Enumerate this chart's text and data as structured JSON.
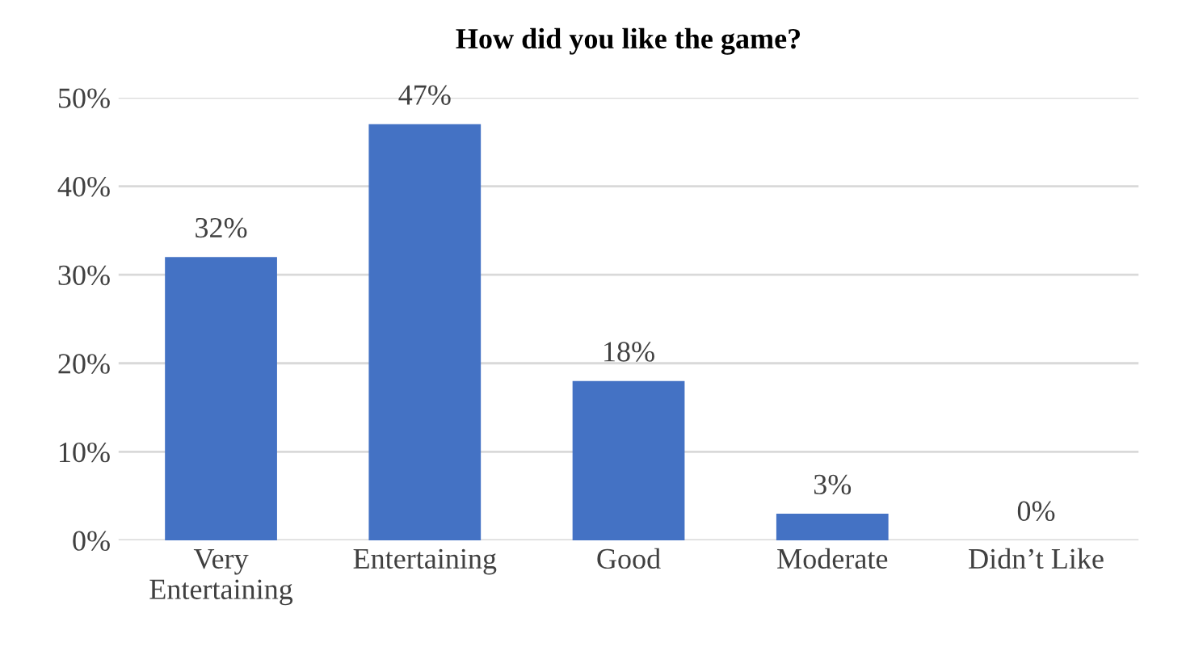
{
  "chart_data": {
    "type": "bar",
    "title": "How did you like the game?",
    "categories": [
      "Very\nEntertaining",
      "Entertaining",
      "Good",
      "Moderate",
      "Didn’t Like"
    ],
    "values": [
      32,
      47,
      18,
      3,
      0
    ],
    "value_labels": [
      "32%",
      "47%",
      "18%",
      "3%",
      "0%"
    ],
    "color": "#4472c4",
    "ylim": [
      0,
      50
    ],
    "yticks": [
      {
        "value": 0,
        "label": "0%"
      },
      {
        "value": 10,
        "label": "10%"
      },
      {
        "value": 20,
        "label": "20%"
      },
      {
        "value": 30,
        "label": "30%"
      },
      {
        "value": 40,
        "label": "40%"
      },
      {
        "value": 50,
        "label": "50%"
      }
    ],
    "grid": "y"
  }
}
